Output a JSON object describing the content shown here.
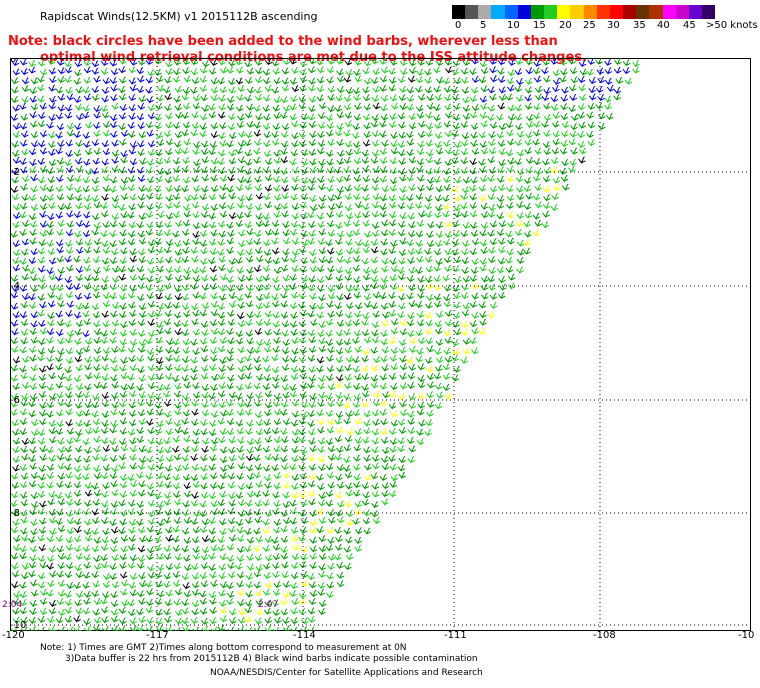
{
  "title": "Rapidscat Winds(12.5KM) v1 2015112B ascending",
  "note_lines": [
    "Note: black circles have been added to the wind barbs, wherever less than",
    "optimal wind retrieval conditions are met due to the ISS attitude changes."
  ],
  "legend": {
    "labels": [
      "0",
      "5",
      "10",
      "15",
      "20",
      "25",
      "30",
      "35",
      "40",
      "45",
      ">50 knots"
    ],
    "colors": [
      "#000000",
      "#555555",
      "#aaaaaa",
      "#00aaff",
      "#0066ff",
      "#0000dd",
      "#009900",
      "#22cc22",
      "#ffff00",
      "#ffcc00",
      "#ff8800",
      "#ff3300",
      "#ff0000",
      "#aa0000",
      "#663300",
      "#aa3300",
      "#ff00ff",
      "#cc00cc",
      "#6600cc",
      "#330066"
    ]
  },
  "axes": {
    "x_ticks": [
      "-120",
      "-117",
      "-114",
      "-111",
      "-108",
      "-10"
    ],
    "y_ticks": [
      "0",
      "-2",
      "-4",
      "-6",
      "-8",
      "-10"
    ]
  },
  "times": {
    "left": "2:04",
    "right": "2:07"
  },
  "footer": {
    "line1": "Note: 1) Times are GMT 2)Times along bottom correspond to measurement at 0N",
    "line2": "3)Data buffer is 22 hrs from 2015112B 4) Black wind barbs indicate possible contamination",
    "line3": "NOAA/NESDIS/Center for Satellite Applications and Research"
  },
  "map_colors": {
    "green_dark": "#009900",
    "green_light": "#22cc22",
    "blue": "#0000dd",
    "yellow": "#ffff00",
    "black": "#000000",
    "grid": "#000000"
  }
}
